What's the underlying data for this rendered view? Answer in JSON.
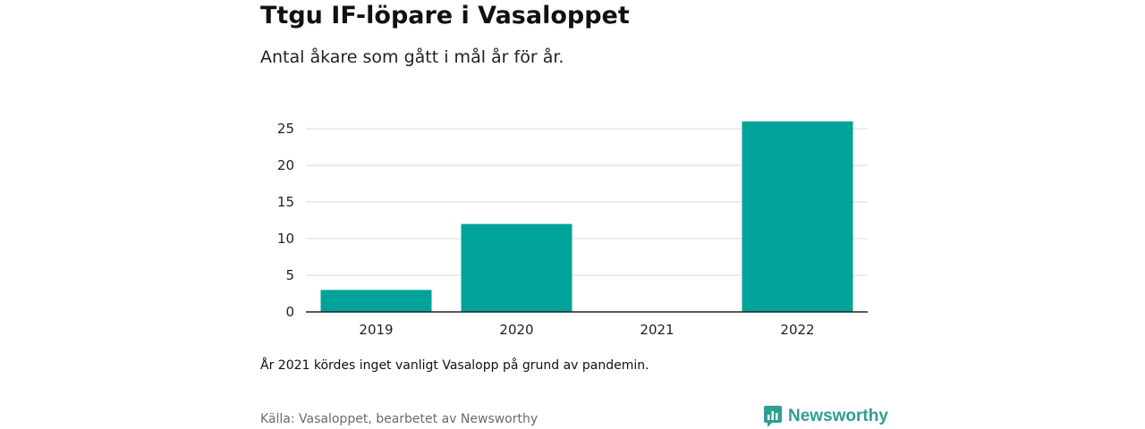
{
  "header": {
    "title": "Ttgu IF-löpare i Vasaloppet",
    "subtitle": "Antal åkare som gått i mål år för år."
  },
  "chart_data": {
    "type": "bar",
    "categories": [
      "2019",
      "2020",
      "2021",
      "2022"
    ],
    "values": [
      3,
      12,
      0,
      26
    ],
    "ylim": [
      0,
      25
    ],
    "yticks": [
      "0",
      "5",
      "10",
      "15",
      "20",
      "25"
    ],
    "grid": true,
    "bar_color": "#00a39a"
  },
  "footer": {
    "note": "År 2021 kördes inget vanligt Vasalopp på grund av pandemin.",
    "source": "Källa: Vasaloppet, bearbetet av Newsworthy",
    "brand": "Newsworthy",
    "brand_color": "#2e9e91",
    "brand_icon": "bar-chart-speech-icon"
  }
}
